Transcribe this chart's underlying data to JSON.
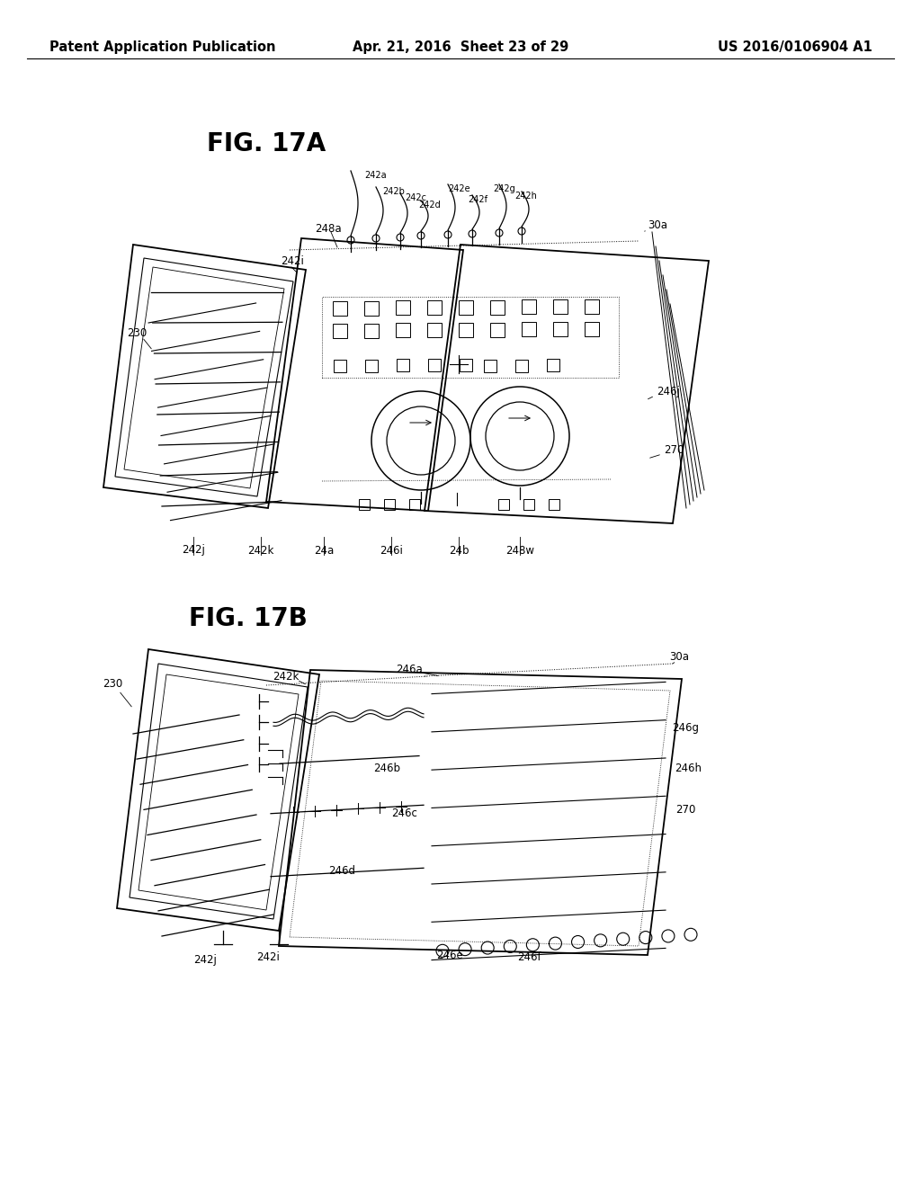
{
  "background_color": "#ffffff",
  "header_left": "Patent Application Publication",
  "header_center": "Apr. 21, 2016  Sheet 23 of 29",
  "header_right": "US 2016/0106904 A1",
  "fig17a_title": "FIG. 17A",
  "fig17b_title": "FIG. 17B",
  "header_fontsize": 10.5,
  "title_fontsize": 20,
  "label_fontsize": 8.5
}
